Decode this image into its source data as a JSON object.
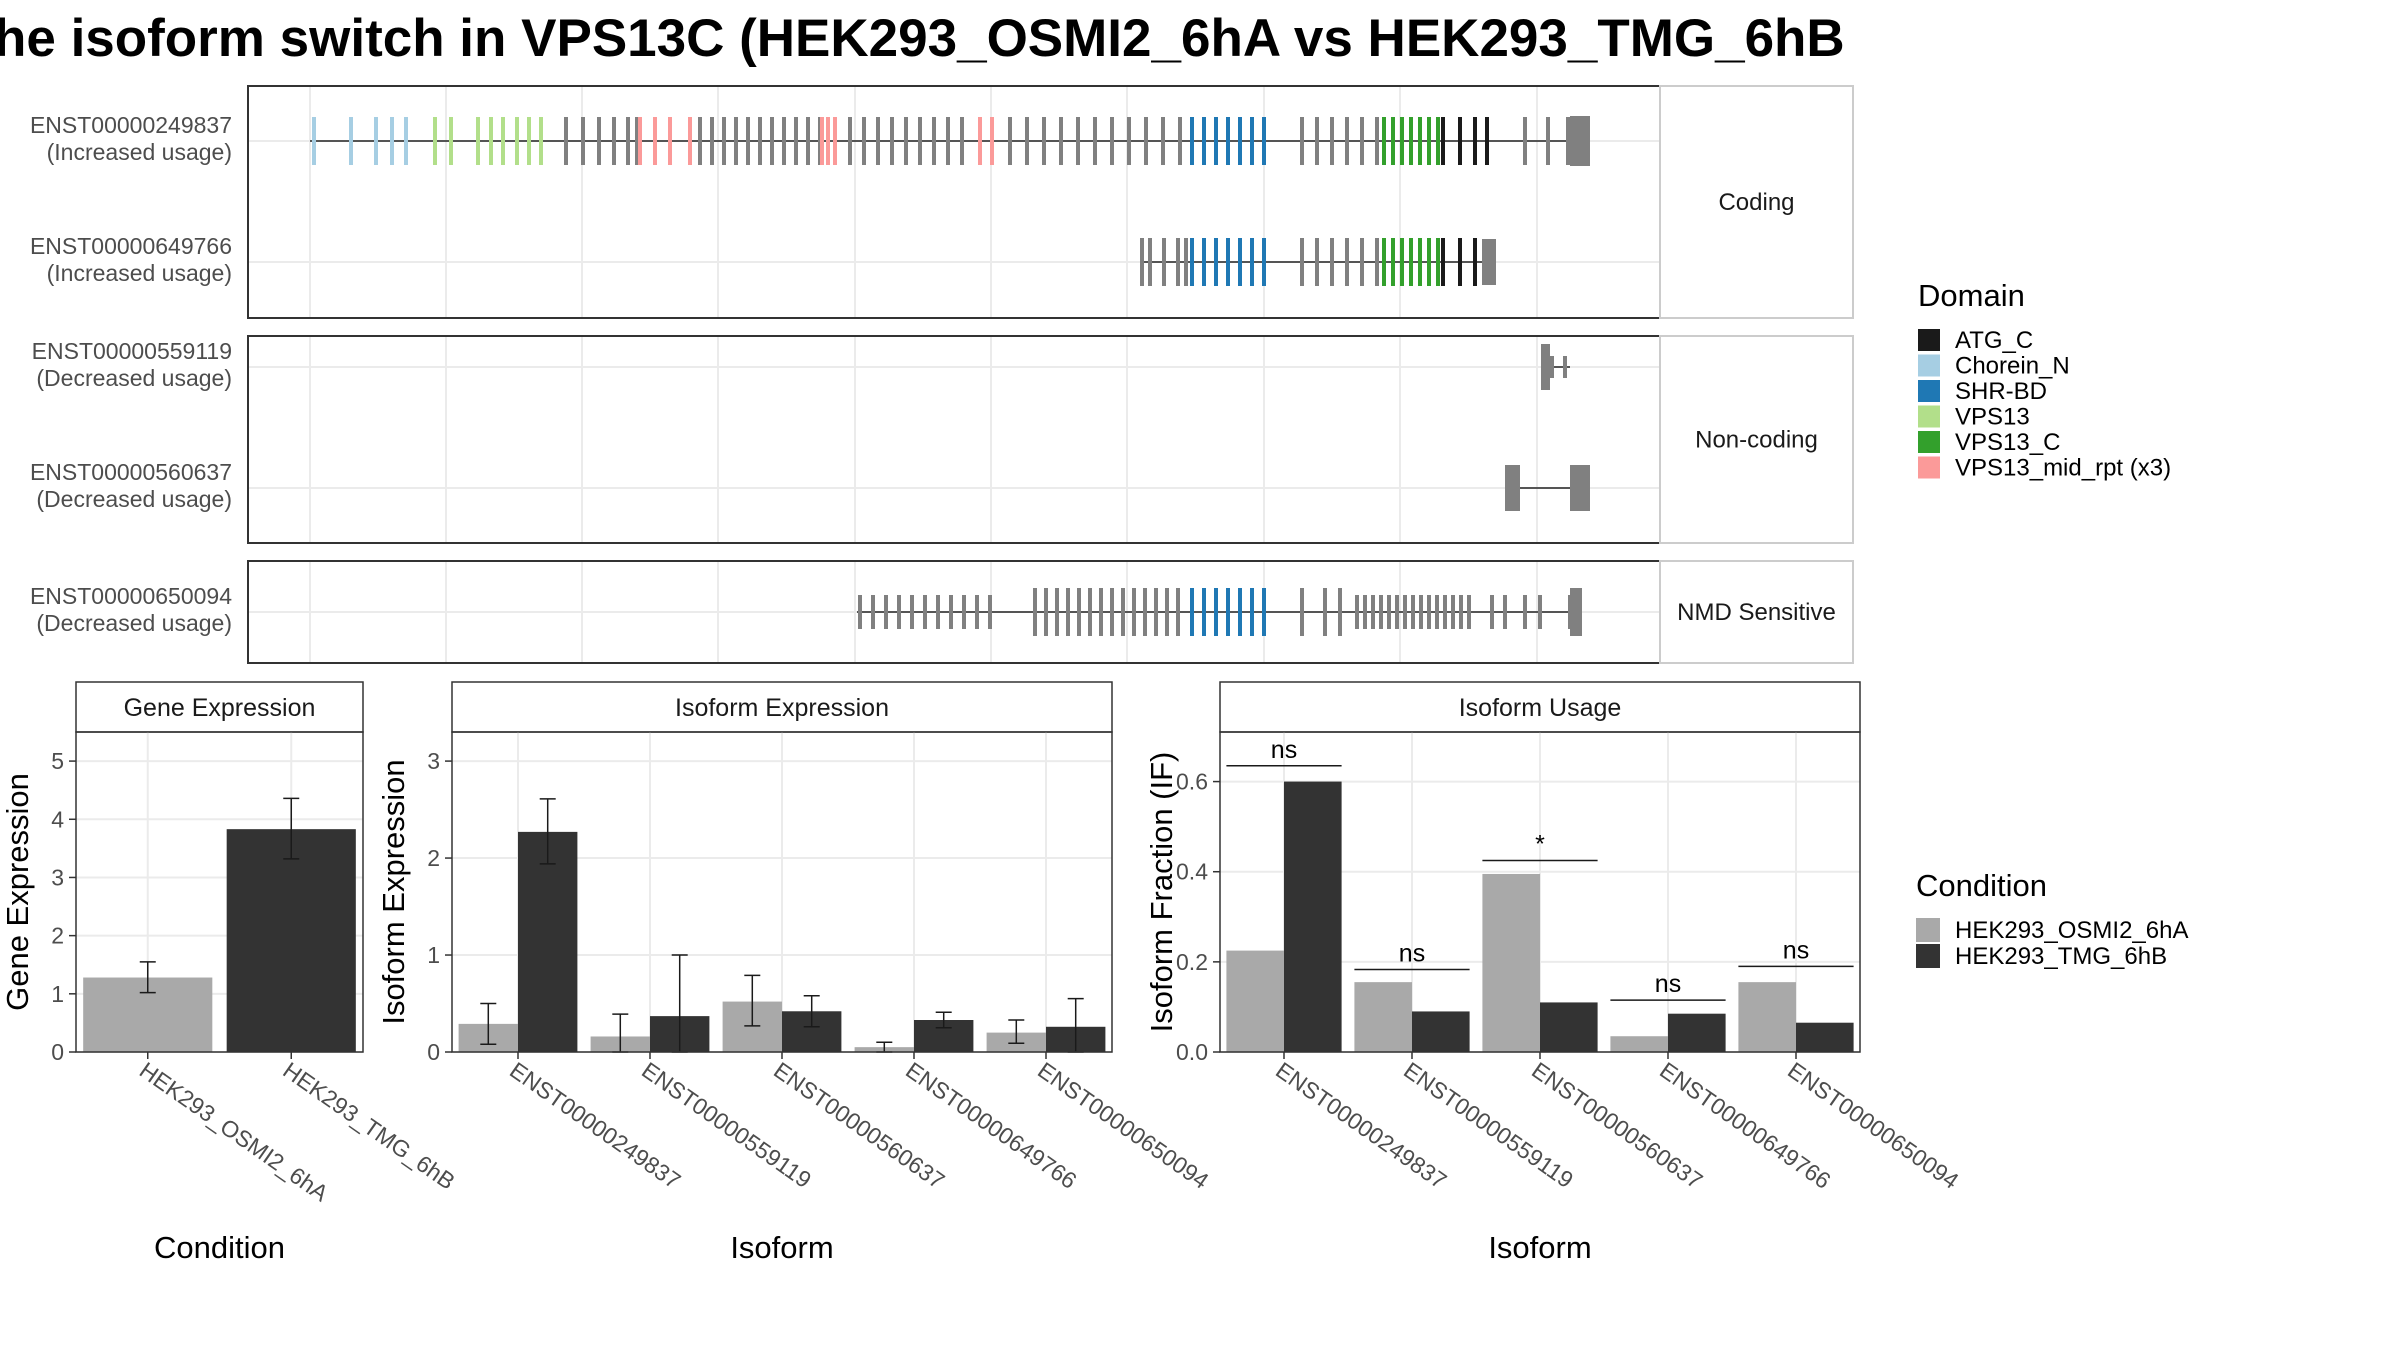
{
  "title": "he isoform switch in VPS13C (HEK293_OSMI2_6hA vs HEK293_TMG_6hB",
  "colors": {
    "cond_a": "#a9a9a9",
    "cond_b": "#333333",
    "exon": "#808080",
    "intron": "#555555",
    "panel_border": "#333333",
    "strip_fill": "#ffffff",
    "grid": "#ebebeb"
  },
  "legends": {
    "domain": {
      "title": "Domain",
      "items": [
        {
          "label": "ATG_C",
          "color": "#1a1a1a"
        },
        {
          "label": "Chorein_N",
          "color": "#a6cee3"
        },
        {
          "label": "SHR-BD",
          "color": "#1f78b4"
        },
        {
          "label": "VPS13",
          "color": "#b2df8a"
        },
        {
          "label": "VPS13_C",
          "color": "#33a02c"
        },
        {
          "label": "VPS13_mid_rpt (x3)",
          "color": "#fb9a99"
        }
      ]
    },
    "condition": {
      "title": "Condition",
      "items": [
        {
          "label": "HEK293_OSMI2_6hA",
          "color": "#a9a9a9"
        },
        {
          "label": "HEK293_TMG_6hB",
          "color": "#333333"
        }
      ]
    }
  },
  "chart_data": [
    {
      "type": "gene_structure",
      "groups": [
        {
          "strip": "Coding",
          "transcripts": [
            {
              "id": "ENST00000249837",
              "usage": "(Increased usage)"
            },
            {
              "id": "ENST00000649766",
              "usage": "(Increased usage)"
            }
          ]
        },
        {
          "strip": "Non-coding",
          "transcripts": [
            {
              "id": "ENST00000559119",
              "usage": "(Decreased usage)"
            },
            {
              "id": "ENST00000560637",
              "usage": "(Decreased usage)"
            }
          ]
        },
        {
          "strip": "NMD Sensitive",
          "transcripts": [
            {
              "id": "ENST00000650094",
              "usage": "(Decreased usage)"
            }
          ]
        }
      ]
    },
    {
      "type": "bar",
      "title": "Gene Expression",
      "xlabel": "Condition",
      "ylabel": "Gene Expression",
      "ylim": [
        0,
        5.5
      ],
      "yticks": [
        0,
        1,
        2,
        3,
        4,
        5
      ],
      "categories": [
        "HEK293_OSMI2_6hA",
        "HEK293_TMG_6hB"
      ],
      "values": [
        1.28,
        3.83
      ],
      "errors": [
        [
          1.02,
          1.55
        ],
        [
          3.32,
          4.36
        ]
      ]
    },
    {
      "type": "bar",
      "title": "Isoform Expression",
      "xlabel": "Isoform",
      "ylabel": "Isoform Expression",
      "ylim": [
        0,
        3.3
      ],
      "yticks": [
        0,
        1,
        2,
        3
      ],
      "categories": [
        "ENST00000249837",
        "ENST00000559119",
        "ENST00000560637",
        "ENST00000649766",
        "ENST00000650094"
      ],
      "series": [
        {
          "name": "HEK293_OSMI2_6hA",
          "values": [
            0.29,
            0.16,
            0.52,
            0.05,
            0.2
          ],
          "errors": [
            [
              0.08,
              0.5
            ],
            [
              0.0,
              0.39
            ],
            [
              0.27,
              0.79
            ],
            [
              0.0,
              0.1
            ],
            [
              0.09,
              0.33
            ]
          ]
        },
        {
          "name": "HEK293_TMG_6hB",
          "values": [
            2.27,
            0.37,
            0.42,
            0.33,
            0.26
          ],
          "errors": [
            [
              1.94,
              2.61
            ],
            [
              0.0,
              1.0
            ],
            [
              0.26,
              0.58
            ],
            [
              0.25,
              0.41
            ],
            [
              0.0,
              0.55
            ]
          ]
        }
      ]
    },
    {
      "type": "bar",
      "title": "Isoform Usage",
      "xlabel": "Isoform",
      "ylabel": "Isoform Fraction (IF)",
      "ylim": [
        0,
        0.71
      ],
      "yticks": [
        "0.0",
        "0.2",
        "0.4",
        "0.6"
      ],
      "categories": [
        "ENST00000249837",
        "ENST00000559119",
        "ENST00000560637",
        "ENST00000649766",
        "ENST00000650094"
      ],
      "series": [
        {
          "name": "HEK293_OSMI2_6hA",
          "values": [
            0.225,
            0.155,
            0.395,
            0.035,
            0.155
          ]
        },
        {
          "name": "HEK293_TMG_6hB",
          "values": [
            0.6,
            0.09,
            0.11,
            0.085,
            0.065
          ]
        }
      ],
      "significance": [
        {
          "label": "ns",
          "y": 0.635
        },
        {
          "label": "ns",
          "y": 0.183
        },
        {
          "label": "*",
          "y": 0.425
        },
        {
          "label": "ns",
          "y": 0.115
        },
        {
          "label": "ns",
          "y": 0.19
        }
      ]
    }
  ]
}
